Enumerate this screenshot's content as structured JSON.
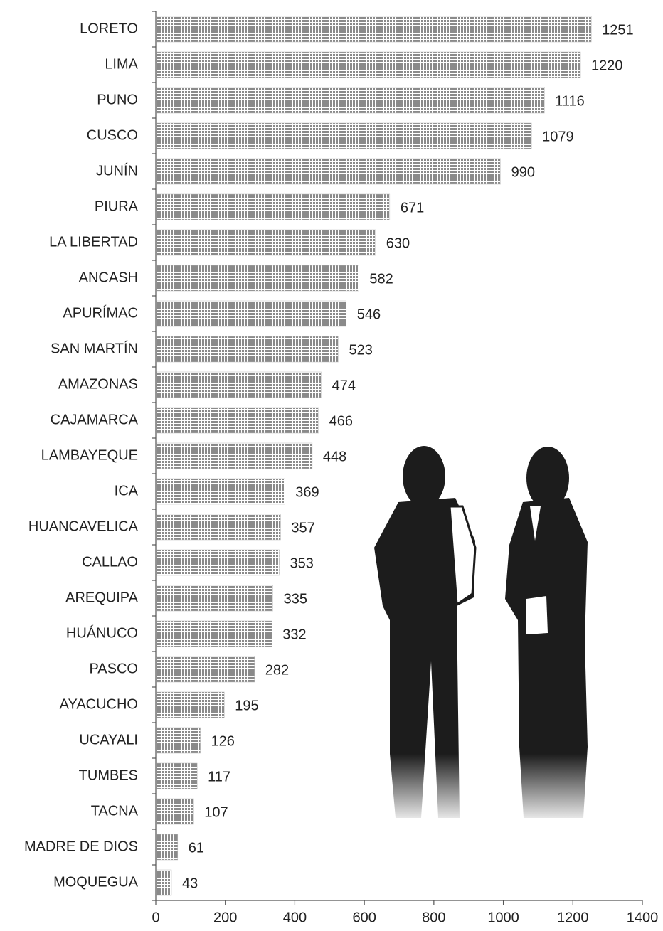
{
  "chart_data": {
    "type": "bar",
    "orientation": "horizontal",
    "categories": [
      "LORETO",
      "LIMA",
      "PUNO",
      "CUSCO",
      "JUNÍN",
      "PIURA",
      "LA LIBERTAD",
      "ANCASH",
      "APURÍMAC",
      "SAN MARTÍN",
      "AMAZONAS",
      "CAJAMARCA",
      "LAMBAYEQUE",
      "ICA",
      "HUANCAVELICA",
      "CALLAO",
      "AREQUIPA",
      "HUÁNUCO",
      "PASCO",
      "AYACUCHO",
      "UCAYALI",
      "TUMBES",
      "TACNA",
      "MADRE DE DIOS",
      "MOQUEGUA"
    ],
    "values": [
      1251,
      1220,
      1116,
      1079,
      990,
      671,
      630,
      582,
      546,
      523,
      474,
      466,
      448,
      369,
      357,
      353,
      335,
      332,
      282,
      195,
      126,
      117,
      107,
      61,
      43
    ],
    "color": "#8a8a8a",
    "xlim": [
      0,
      1400
    ],
    "xticks": [
      0,
      200,
      400,
      600,
      800,
      1000,
      1200,
      1400
    ]
  }
}
